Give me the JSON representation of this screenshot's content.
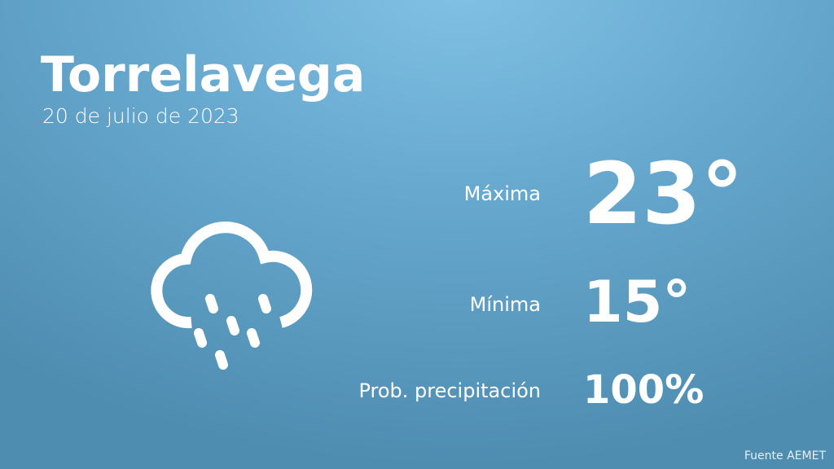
{
  "city": "Torrelavega",
  "date": "20 de julio de 2023",
  "icon": "rain-cloud-icon",
  "stats": [
    {
      "label": "Máxima",
      "value": "23°"
    },
    {
      "label": "Mínima",
      "value": "15°"
    },
    {
      "label": "Prob. precipitación",
      "value": "100%"
    }
  ],
  "source": "Fuente AEMET",
  "colors": {
    "background_top": "#82c2e6",
    "background_bottom": "#4e8db0",
    "text": "#ffffff"
  }
}
